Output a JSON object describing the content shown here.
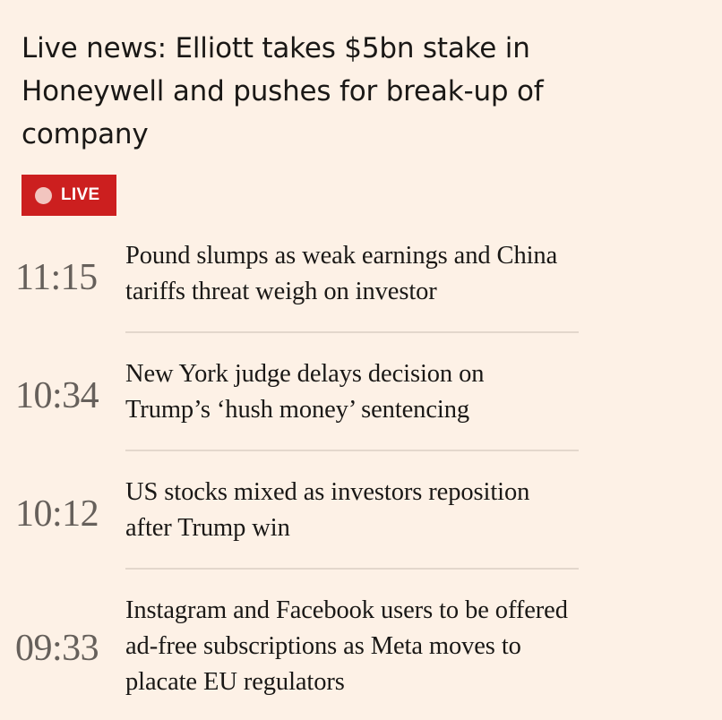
{
  "headline": "Live news: Elliott takes $5bn stake in Honeywell and pushes for break-up of company",
  "live_badge": {
    "label": "LIVE",
    "color": "#cc1f1f"
  },
  "feed": {
    "items": [
      {
        "time": "11:15",
        "title": "Pound slumps as weak earnings and China tariffs threat weigh on investor"
      },
      {
        "time": "10:34",
        "title": "New York judge delays decision on Trump’s ‘hush money’ sentencing"
      },
      {
        "time": "10:12",
        "title": "US stocks mixed as investors reposition after Trump win"
      },
      {
        "time": "09:33",
        "title": "Instagram and Facebook users to be offered ad-free subscriptions as Meta moves to placate EU regulators"
      }
    ]
  }
}
